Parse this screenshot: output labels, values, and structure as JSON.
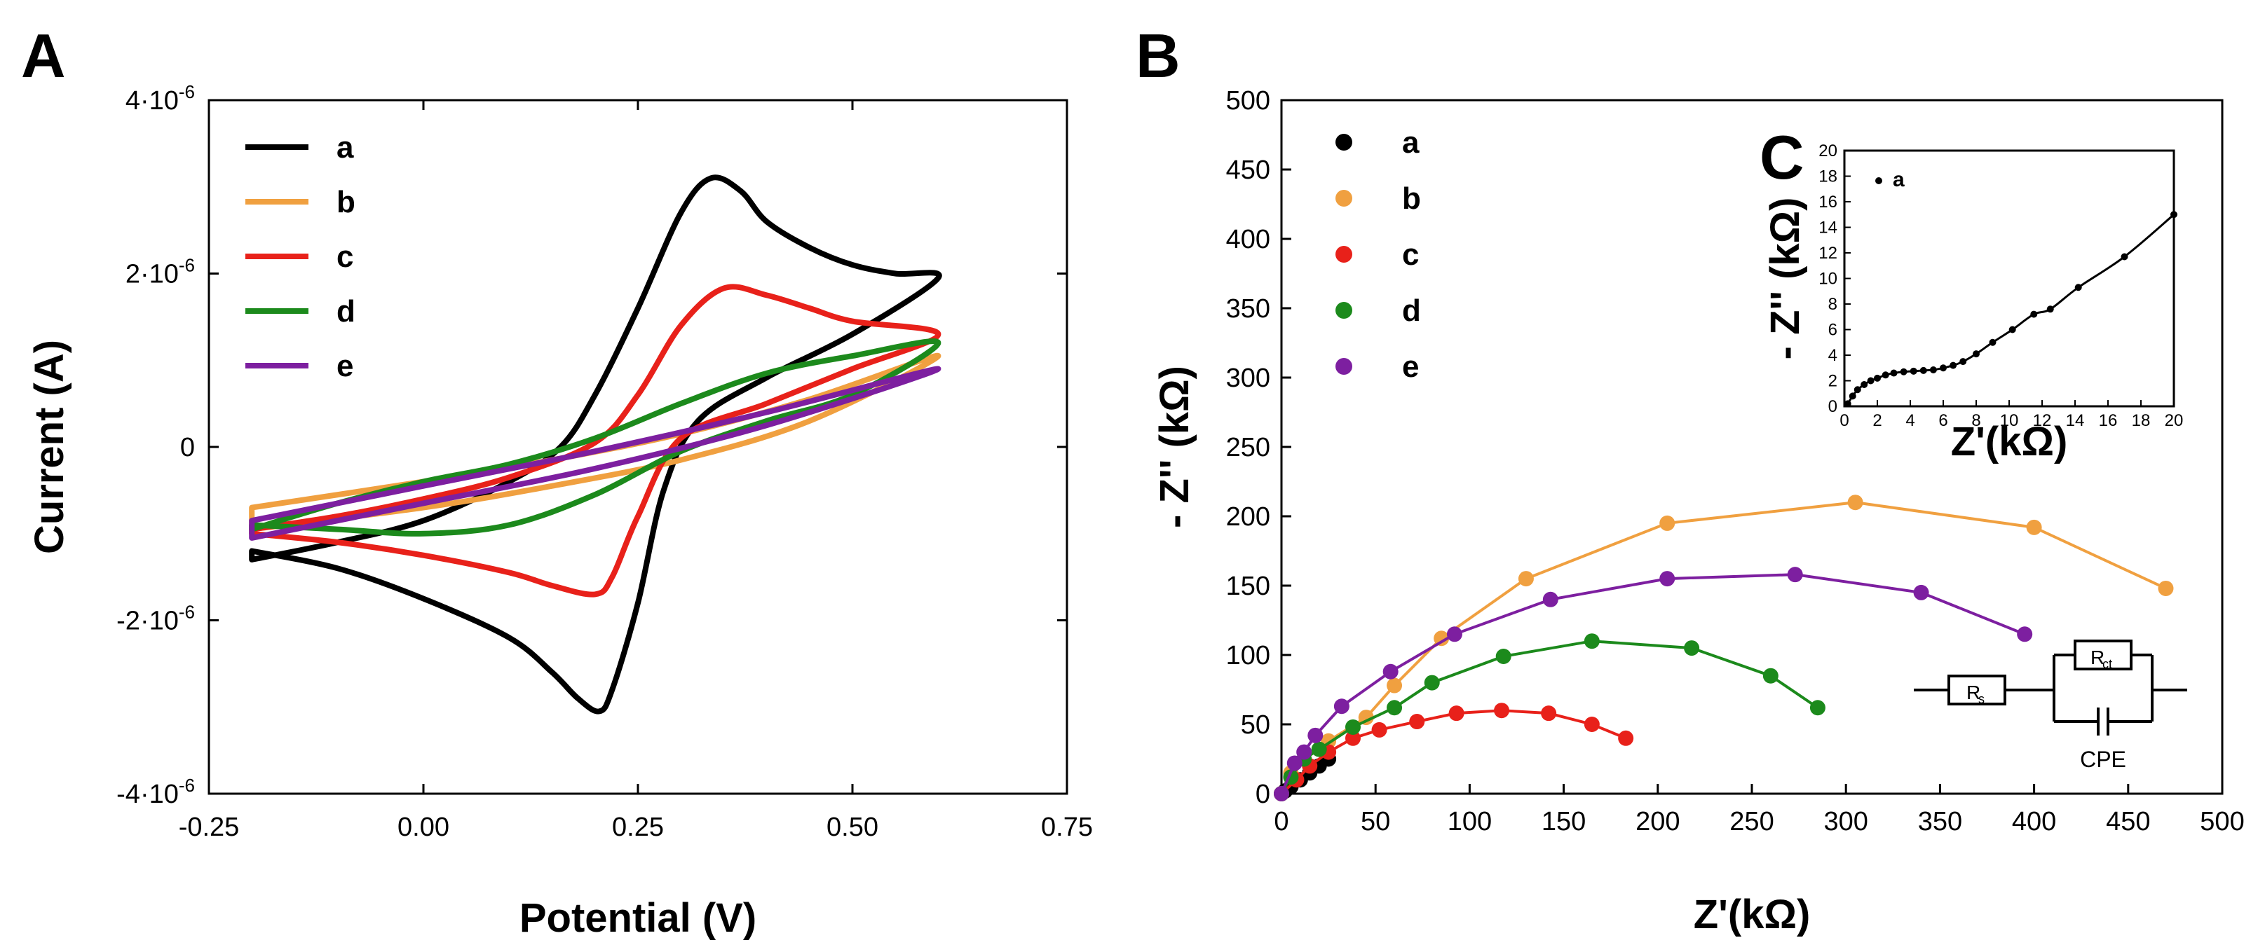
{
  "panels": {
    "a": "A",
    "b": "B",
    "c": "C"
  },
  "colors": {
    "a": "#000000",
    "b": "#F0A040",
    "c": "#E8211A",
    "d": "#1C8A1C",
    "e": "#7D1FA0"
  },
  "chart_data": [
    {
      "id": "A",
      "type": "line",
      "title": "",
      "xlabel": "Potential (V)",
      "ylabel": "Current (A)",
      "xlim": [
        -0.25,
        0.75
      ],
      "ylim": [
        -4e-06,
        4e-06
      ],
      "xticks": [
        {
          "v": -0.25,
          "label": "-0.25"
        },
        {
          "v": 0.0,
          "label": "0.00"
        },
        {
          "v": 0.25,
          "label": "0.25"
        },
        {
          "v": 0.5,
          "label": "0.50"
        },
        {
          "v": 0.75,
          "label": "0.75"
        }
      ],
      "yticks": [
        {
          "v": 4e-06,
          "label": "4·10",
          "exp": "-6"
        },
        {
          "v": 2e-06,
          "label": "2·10",
          "exp": "-6"
        },
        {
          "v": 0,
          "label": "0",
          "exp": ""
        },
        {
          "v": -2e-06,
          "label": "-2·10",
          "exp": "-6"
        },
        {
          "v": -4e-06,
          "label": "-4·10",
          "exp": "-6"
        }
      ],
      "legend_position": "top-left",
      "series": [
        {
          "name": "a",
          "color": "#000000",
          "forward": [
            [
              -0.2,
              -1.3e-06
            ],
            [
              -0.1,
              -1.1e-06
            ],
            [
              0.0,
              -8.5e-07
            ],
            [
              0.1,
              -4e-07
            ],
            [
              0.16,
              0.0
            ],
            [
              0.2,
              6e-07
            ],
            [
              0.25,
              1.6e-06
            ],
            [
              0.3,
              2.7e-06
            ],
            [
              0.335,
              3.1e-06
            ],
            [
              0.37,
              2.95e-06
            ],
            [
              0.4,
              2.6e-06
            ],
            [
              0.45,
              2.3e-06
            ],
            [
              0.5,
              2.1e-06
            ],
            [
              0.55,
              2e-06
            ],
            [
              0.6,
              1.95e-06
            ]
          ],
          "reverse": [
            [
              0.6,
              1.7e-06
            ],
            [
              0.5,
              1.3e-06
            ],
            [
              0.4,
              8e-07
            ],
            [
              0.32,
              3e-07
            ],
            [
              0.28,
              -5e-07
            ],
            [
              0.25,
              -1.8e-06
            ],
            [
              0.22,
              -2.8e-06
            ],
            [
              0.205,
              -3.05e-06
            ],
            [
              0.18,
              -2.9e-06
            ],
            [
              0.15,
              -2.6e-06
            ],
            [
              0.1,
              -2.2e-06
            ],
            [
              0.0,
              -1.75e-06
            ],
            [
              -0.1,
              -1.4e-06
            ],
            [
              -0.2,
              -1.2e-06
            ]
          ]
        },
        {
          "name": "b",
          "color": "#F0A040",
          "forward": [
            [
              -0.2,
              -7e-07
            ],
            [
              0.0,
              -4e-07
            ],
            [
              0.15,
              -1.5e-07
            ],
            [
              0.3,
              1.5e-07
            ],
            [
              0.45,
              5.5e-07
            ],
            [
              0.6,
              1.05e-06
            ]
          ],
          "reverse": [
            [
              0.6,
              9.5e-07
            ],
            [
              0.45,
              3e-07
            ],
            [
              0.3,
              -1.5e-07
            ],
            [
              0.15,
              -4.5e-07
            ],
            [
              0.0,
              -7e-07
            ],
            [
              -0.2,
              -9.5e-07
            ]
          ]
        },
        {
          "name": "c",
          "color": "#E8211A",
          "forward": [
            [
              -0.2,
              -9.5e-07
            ],
            [
              -0.1,
              -8e-07
            ],
            [
              0.0,
              -6e-07
            ],
            [
              0.1,
              -3.5e-07
            ],
            [
              0.2,
              5e-08
            ],
            [
              0.25,
              6e-07
            ],
            [
              0.3,
              1.4e-06
            ],
            [
              0.35,
              1.83e-06
            ],
            [
              0.4,
              1.75e-06
            ],
            [
              0.45,
              1.6e-06
            ],
            [
              0.5,
              1.45e-06
            ],
            [
              0.6,
              1.3e-06
            ]
          ],
          "reverse": [
            [
              0.6,
              1.2e-06
            ],
            [
              0.5,
              9e-07
            ],
            [
              0.4,
              5e-07
            ],
            [
              0.3,
              1e-07
            ],
            [
              0.25,
              -8e-07
            ],
            [
              0.22,
              -1.5e-06
            ],
            [
              0.2,
              -1.7e-06
            ],
            [
              0.15,
              -1.6e-06
            ],
            [
              0.1,
              -1.45e-06
            ],
            [
              0.0,
              -1.25e-06
            ],
            [
              -0.1,
              -1.1e-06
            ],
            [
              -0.2,
              -1e-06
            ]
          ]
        },
        {
          "name": "d",
          "color": "#1C8A1C",
          "forward": [
            [
              -0.2,
              -9.5e-07
            ],
            [
              -0.1,
              -6.5e-07
            ],
            [
              0.0,
              -4e-07
            ],
            [
              0.1,
              -2e-07
            ],
            [
              0.2,
              1e-07
            ],
            [
              0.3,
              5e-07
            ],
            [
              0.4,
              8.5e-07
            ],
            [
              0.5,
              1.05e-06
            ],
            [
              0.6,
              1.2e-06
            ]
          ],
          "reverse": [
            [
              0.6,
              1e-06
            ],
            [
              0.5,
              6e-07
            ],
            [
              0.4,
              3e-07
            ],
            [
              0.3,
              -5e-08
            ],
            [
              0.2,
              -5.5e-07
            ],
            [
              0.1,
              -9e-07
            ],
            [
              0.0,
              -1e-06
            ],
            [
              -0.1,
              -9.5e-07
            ],
            [
              -0.2,
              -9e-07
            ]
          ]
        },
        {
          "name": "e",
          "color": "#7D1FA0",
          "forward": [
            [
              -0.2,
              -8.5e-07
            ],
            [
              0.0,
              -4.5e-07
            ],
            [
              0.2,
              -5e-08
            ],
            [
              0.4,
              4e-07
            ],
            [
              0.6,
              9e-07
            ]
          ],
          "reverse": [
            [
              0.6,
              8.5e-07
            ],
            [
              0.4,
              2.5e-07
            ],
            [
              0.2,
              -2.5e-07
            ],
            [
              0.0,
              -6.5e-07
            ],
            [
              -0.2,
              -1.05e-06
            ]
          ]
        }
      ]
    },
    {
      "id": "B",
      "type": "scatter",
      "title": "",
      "xlabel": "Z'(kΩ)",
      "ylabel": "- Z'' (kΩ)",
      "xlim": [
        0,
        500
      ],
      "ylim": [
        0,
        500
      ],
      "xticks": [
        0,
        50,
        100,
        150,
        200,
        250,
        300,
        350,
        400,
        450,
        500
      ],
      "yticks": [
        0,
        50,
        100,
        150,
        200,
        250,
        300,
        350,
        400,
        450,
        500
      ],
      "legend_position": "top-left",
      "circuit_labels": {
        "rs": "R",
        "rs_sub": "s",
        "rct": "R",
        "rct_sub": "ct",
        "cpe": "CPE"
      },
      "series": [
        {
          "name": "a",
          "color": "#000000",
          "points": [
            [
              2,
              2
            ],
            [
              5,
              5
            ],
            [
              10,
              10
            ],
            [
              15,
              15
            ],
            [
              20,
              20
            ],
            [
              25,
              25
            ]
          ]
        },
        {
          "name": "b",
          "color": "#F0A040",
          "points": [
            [
              0,
              0
            ],
            [
              5,
              15
            ],
            [
              12,
              25
            ],
            [
              25,
              38
            ],
            [
              45,
              55
            ],
            [
              60,
              78
            ],
            [
              85,
              112
            ],
            [
              130,
              155
            ],
            [
              205,
              195
            ],
            [
              305,
              210
            ],
            [
              400,
              192
            ],
            [
              470,
              148
            ]
          ]
        },
        {
          "name": "c",
          "color": "#E8211A",
          "points": [
            [
              0,
              0
            ],
            [
              8,
              10
            ],
            [
              15,
              20
            ],
            [
              25,
              30
            ],
            [
              38,
              40
            ],
            [
              52,
              46
            ],
            [
              72,
              52
            ],
            [
              93,
              58
            ],
            [
              117,
              60
            ],
            [
              142,
              58
            ],
            [
              165,
              50
            ],
            [
              183,
              40
            ]
          ]
        },
        {
          "name": "d",
          "color": "#1C8A1C",
          "points": [
            [
              0,
              0
            ],
            [
              5,
              12
            ],
            [
              12,
              25
            ],
            [
              20,
              32
            ],
            [
              38,
              48
            ],
            [
              60,
              62
            ],
            [
              80,
              80
            ],
            [
              118,
              99
            ],
            [
              165,
              110
            ],
            [
              218,
              105
            ],
            [
              260,
              85
            ],
            [
              285,
              62
            ]
          ]
        },
        {
          "name": "e",
          "color": "#7D1FA0",
          "points": [
            [
              0,
              0
            ],
            [
              7,
              22
            ],
            [
              12,
              30
            ],
            [
              18,
              42
            ],
            [
              32,
              63
            ],
            [
              58,
              88
            ],
            [
              92,
              115
            ],
            [
              143,
              140
            ],
            [
              205,
              155
            ],
            [
              273,
              158
            ],
            [
              340,
              145
            ],
            [
              395,
              115
            ]
          ]
        }
      ]
    },
    {
      "id": "C",
      "type": "scatter",
      "title": "",
      "xlabel": "Z'(kΩ)",
      "ylabel": "- Z'' (kΩ)",
      "xlim": [
        0,
        20
      ],
      "ylim": [
        0,
        20
      ],
      "xticks": [
        0,
        2,
        4,
        6,
        8,
        10,
        12,
        14,
        16,
        18,
        20
      ],
      "yticks": [
        0,
        2,
        4,
        6,
        8,
        10,
        12,
        14,
        16,
        18,
        20
      ],
      "legend_position": "top-left",
      "series": [
        {
          "name": "a",
          "color": "#000000",
          "points": [
            [
              0.2,
              0.2
            ],
            [
              0.5,
              0.8
            ],
            [
              0.8,
              1.3
            ],
            [
              1.2,
              1.7
            ],
            [
              1.6,
              2.0
            ],
            [
              2.0,
              2.2
            ],
            [
              2.5,
              2.45
            ],
            [
              3.0,
              2.6
            ],
            [
              3.6,
              2.7
            ],
            [
              4.2,
              2.75
            ],
            [
              4.8,
              2.8
            ],
            [
              5.4,
              2.85
            ],
            [
              6.0,
              3.0
            ],
            [
              6.6,
              3.2
            ],
            [
              7.2,
              3.5
            ],
            [
              8.0,
              4.1
            ],
            [
              9.0,
              5.0
            ],
            [
              10.2,
              6.0
            ],
            [
              11.5,
              7.2
            ],
            [
              12.5,
              7.6
            ],
            [
              14.2,
              9.3
            ],
            [
              17.0,
              11.7
            ],
            [
              20.0,
              15.0
            ]
          ]
        }
      ]
    }
  ]
}
